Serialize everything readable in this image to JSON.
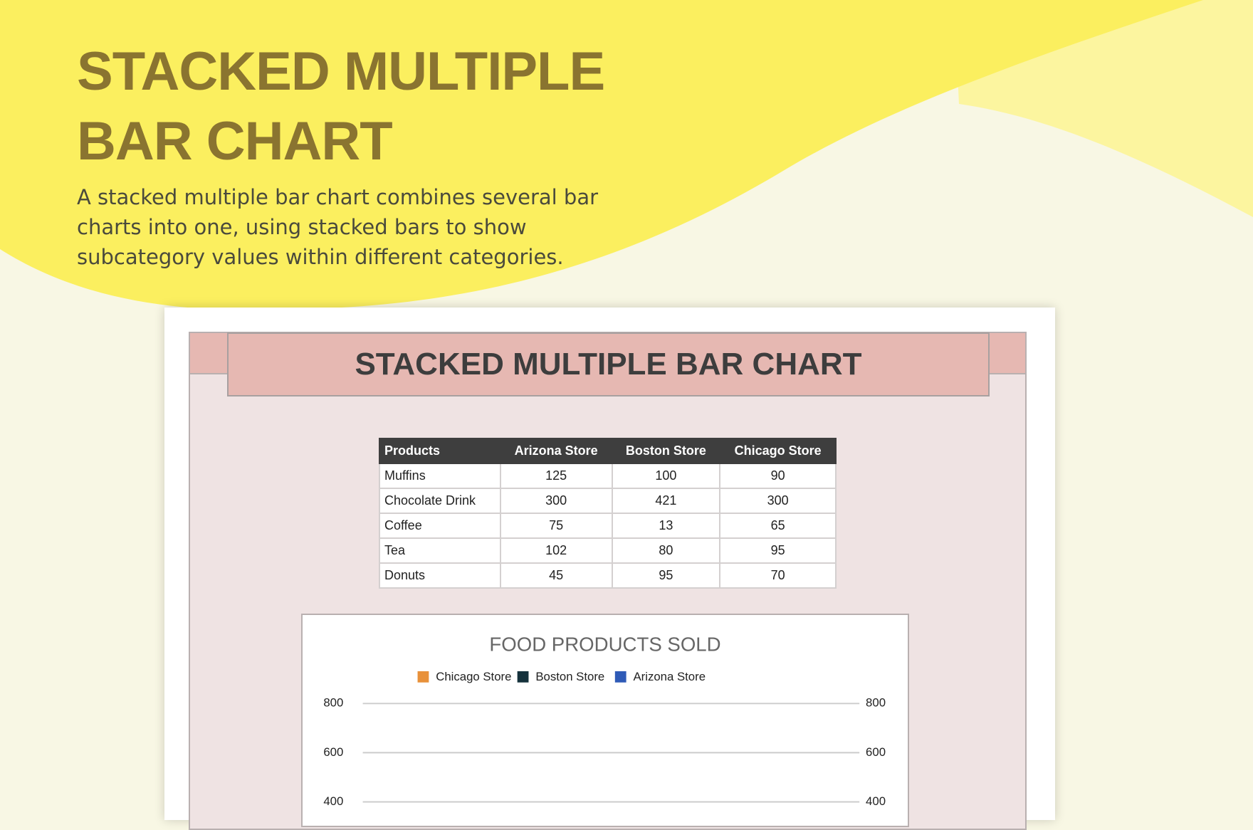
{
  "header": {
    "title": "STACKED MULTIPLE BAR CHART",
    "description": "A stacked multiple bar chart combines several bar charts into one, using stacked bars to show subcategory values within different categories."
  },
  "document": {
    "title": "STACKED MULTIPLE BAR CHART",
    "table": {
      "columns": [
        "Products",
        "Arizona Store",
        "Boston Store",
        "Chicago Store"
      ],
      "rows": [
        [
          "Muffins",
          "125",
          "100",
          "90"
        ],
        [
          "Chocolate Drink",
          "300",
          "421",
          "300"
        ],
        [
          "Coffee",
          "75",
          "13",
          "65"
        ],
        [
          "Tea",
          "102",
          "80",
          "95"
        ],
        [
          "Donuts",
          "45",
          "95",
          "70"
        ]
      ]
    }
  },
  "chart_data": {
    "type": "bar",
    "title": "FOOD PRODUCTS SOLD",
    "series": [
      {
        "name": "Chicago Store",
        "color": "#e8913a"
      },
      {
        "name": "Boston Store",
        "color": "#15323c"
      },
      {
        "name": "Arizona Store",
        "color": "#2f5bb7"
      }
    ],
    "ylim": [
      0,
      800
    ],
    "yticks": [
      400,
      600,
      800
    ],
    "y2lim": [
      0,
      800
    ],
    "y2ticks": [
      400,
      600,
      800
    ],
    "grid": true
  }
}
